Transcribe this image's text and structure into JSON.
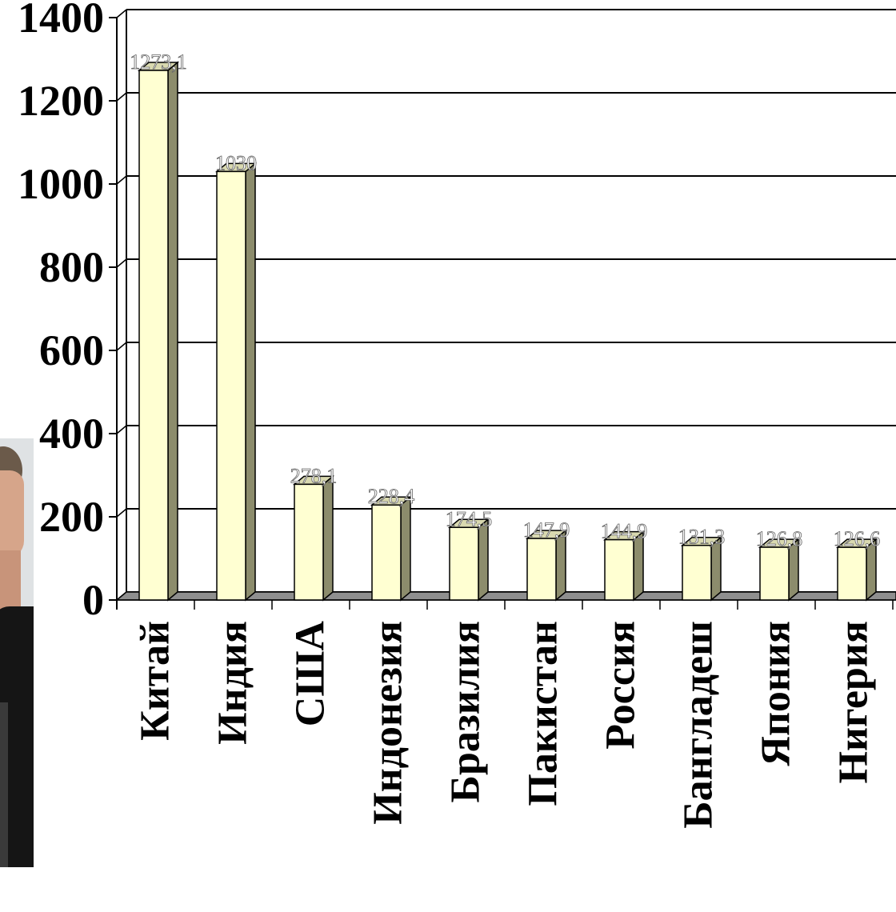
{
  "chart_data": {
    "type": "bar",
    "categories": [
      "Китай",
      "Индия",
      "США",
      "Индонезия",
      "Бразилия",
      "Пакистан",
      "Россия",
      "Бангладеш",
      "Япония",
      "Нигерия"
    ],
    "values": [
      1273.1,
      1030,
      278.1,
      228.4,
      174.5,
      147.9,
      144.9,
      131.3,
      126.8,
      126.6
    ],
    "data_labels": [
      "1273,1",
      "1030",
      "278,1",
      "228,4",
      "174,5",
      "147,9",
      "144,9",
      "131,3",
      "126,8",
      "126,6"
    ],
    "y_ticks": [
      "0",
      "200",
      "400",
      "600",
      "800",
      "1000",
      "1200",
      "1400"
    ],
    "ylim": [
      0,
      1400
    ],
    "grid": true,
    "title": "",
    "xlabel": "",
    "ylabel": "",
    "colors": {
      "bar_front": "#ffffd2",
      "bar_side": "#8c8c6c",
      "bar_top": "#d9d9b0",
      "floor": "#8f8f8f"
    }
  },
  "photo": {
    "icon": "person-photo"
  }
}
